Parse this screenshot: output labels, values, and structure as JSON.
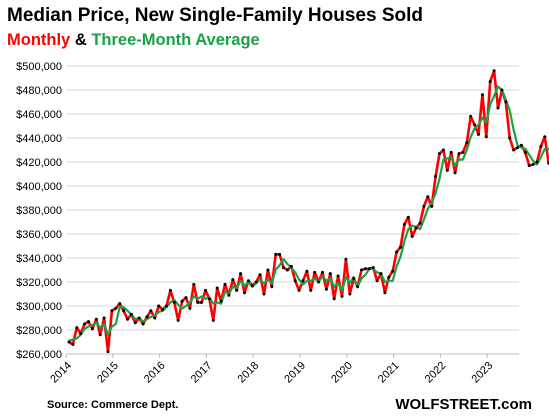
{
  "header": {
    "title": "Median Price, New Single-Family Houses Sold",
    "subtitle_monthly": "Monthly",
    "subtitle_amp": " & ",
    "subtitle_avg": "Three-Month Average"
  },
  "footer": {
    "source": "Source: Commerce Dept.",
    "brand": "WOLFSTREET.com"
  },
  "colors": {
    "monthly": "#ff0000",
    "average": "#1aa14a",
    "points": "#000000",
    "grid": "#d9d9d9"
  },
  "chart_data": {
    "type": "line",
    "title": "Median Price, New Single-Family Houses Sold",
    "xlabel": "",
    "ylabel": "",
    "grid": true,
    "legend": "subtitle",
    "ylim": [
      260000,
      500000
    ],
    "y_ticks": [
      "$260,000",
      "$280,000",
      "$300,000",
      "$320,000",
      "$340,000",
      "$360,000",
      "$380,000",
      "$400,000",
      "$420,000",
      "$440,000",
      "$460,000",
      "$480,000",
      "$500,000"
    ],
    "y_tick_values": [
      260000,
      280000,
      300000,
      320000,
      340000,
      360000,
      380000,
      400000,
      420000,
      440000,
      460000,
      480000,
      500000
    ],
    "x_ticks": [
      "2014",
      "2015",
      "2016",
      "2017",
      "2018",
      "2019",
      "2020",
      "2021",
      "2022",
      "2023"
    ],
    "x_start": "2014-01",
    "x_end": "2023-10",
    "series": [
      {
        "name": "Monthly",
        "values": [
          270000,
          268000,
          282000,
          277000,
          285000,
          287000,
          281000,
          289000,
          276000,
          290000,
          262000,
          296000,
          298000,
          302000,
          296000,
          289000,
          293000,
          286000,
          290000,
          285000,
          291000,
          296000,
          290000,
          300000,
          297000,
          300000,
          313000,
          303000,
          288000,
          304000,
          307000,
          298000,
          318000,
          303000,
          303000,
          313000,
          306000,
          288000,
          315000,
          304000,
          318000,
          309000,
          322000,
          313000,
          327000,
          311000,
          321000,
          317000,
          320000,
          326000,
          310000,
          330000,
          316000,
          343000,
          343000,
          332000,
          330000,
          333000,
          321000,
          313000,
          321000,
          329000,
          313000,
          328000,
          320000,
          328000,
          314000,
          327000,
          306000,
          325000,
          308000,
          339000,
          310000,
          323000,
          316000,
          330000,
          331000,
          331000,
          332000,
          321000,
          327000,
          311000,
          324000,
          329000,
          345000,
          349000,
          368000,
          374000,
          358000,
          365000,
          369000,
          383000,
          391000,
          383000,
          408000,
          427000,
          430000,
          413000,
          428000,
          411000,
          427000,
          428000,
          436000,
          458000,
          451000,
          443000,
          476000,
          441000,
          487000,
          496000,
          465000,
          480000,
          470000,
          440000,
          430000,
          432000,
          434000,
          428000,
          417000,
          418000,
          420000,
          433000,
          441000,
          419000,
          420000,
          409000
        ]
      },
      {
        "name": "Three-Month Average",
        "values": [
          271000,
          272000,
          273000,
          276000,
          281000,
          283000,
          284000,
          286000,
          282000,
          285000,
          276000,
          283000,
          285000,
          299000,
          299000,
          296000,
          293000,
          289000,
          290000,
          287000,
          289000,
          291000,
          292000,
          295000,
          296000,
          299000,
          303000,
          305000,
          301000,
          298000,
          300000,
          303000,
          308000,
          306000,
          308000,
          306000,
          307000,
          302000,
          303000,
          302000,
          312000,
          310000,
          316000,
          315000,
          321000,
          317000,
          320000,
          316000,
          319000,
          322000,
          319000,
          322000,
          319000,
          330000,
          334000,
          339000,
          335000,
          332000,
          328000,
          322000,
          318000,
          321000,
          321000,
          323000,
          320000,
          325000,
          321000,
          323000,
          316000,
          319000,
          313000,
          324000,
          319000,
          324000,
          316000,
          323000,
          326000,
          331000,
          331000,
          328000,
          327000,
          320000,
          321000,
          321000,
          333000,
          341000,
          354000,
          364000,
          367000,
          366000,
          364000,
          372000,
          381000,
          386000,
          394000,
          406000,
          422000,
          423000,
          424000,
          417000,
          422000,
          422000,
          430000,
          441000,
          448000,
          451000,
          457000,
          453000,
          468000,
          475000,
          483000,
          480000,
          472000,
          463000,
          447000,
          434000,
          432000,
          431000,
          426000,
          421000,
          418000,
          424000,
          431000,
          431000,
          427000,
          416000
        ]
      }
    ]
  }
}
